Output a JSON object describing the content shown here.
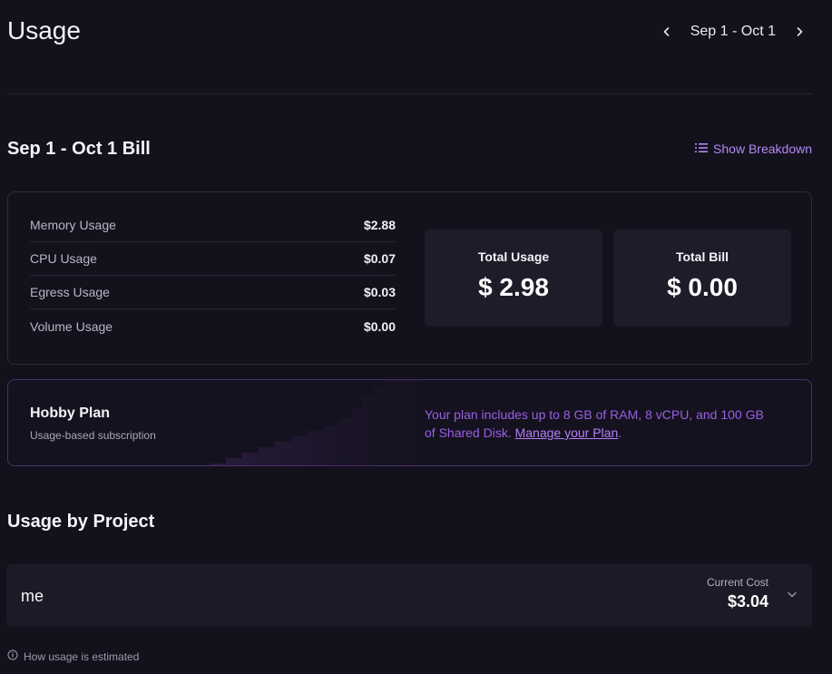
{
  "header": {
    "title": "Usage",
    "date_range": "Sep 1 - Oct 1",
    "prev_icon": "chevron-left-icon",
    "next_icon": "chevron-right-icon"
  },
  "bill": {
    "title": "Sep 1 - Oct 1 Bill",
    "breakdown_label": "Show Breakdown",
    "breakdown_icon": "list-icon",
    "rows": [
      {
        "label": "Memory Usage",
        "value": "$2.88"
      },
      {
        "label": "CPU Usage",
        "value": "$0.07"
      },
      {
        "label": "Egress Usage",
        "value": "$0.03"
      },
      {
        "label": "Volume Usage",
        "value": "$0.00"
      }
    ],
    "total_usage_label": "Total Usage",
    "total_usage_value": "$ 2.98",
    "total_bill_label": "Total Bill",
    "total_bill_value": "$ 0.00"
  },
  "plan": {
    "name": "Hobby Plan",
    "subtitle": "Usage-based subscription",
    "description": "Your plan includes up to 8 GB of RAM, 8 vCPU, and 100 GB of Shared Disk.",
    "manage_link": "Manage your Plan",
    "after_link": "."
  },
  "projects": {
    "title": "Usage by Project",
    "items": [
      {
        "name": "me",
        "cost_label": "Current Cost",
        "cost_value": "$3.04"
      }
    ]
  },
  "footer": {
    "note": "How usage is estimated",
    "note_icon": "info-circle-icon"
  },
  "colors": {
    "background": "#13111c",
    "accent": "#b389f5",
    "plan_border": "#48306b",
    "plan_text": "#9a5fe5"
  }
}
